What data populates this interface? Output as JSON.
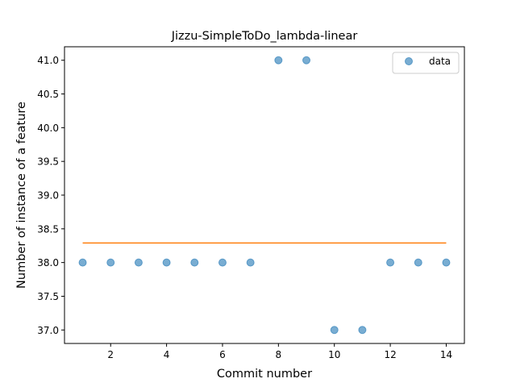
{
  "chart_data": {
    "type": "scatter",
    "title": "Jizzu-SimpleToDo_lambda-linear",
    "xlabel": "Commit number",
    "ylabel": "Number of instance of a feature",
    "xlim": [
      0.35,
      14.65
    ],
    "ylim": [
      36.8,
      41.2
    ],
    "x_ticks": [
      2,
      4,
      6,
      8,
      10,
      12,
      14
    ],
    "y_ticks": [
      37.0,
      37.5,
      38.0,
      38.5,
      39.0,
      39.5,
      40.0,
      40.5,
      41.0
    ],
    "x_tick_labels": [
      "2",
      "4",
      "6",
      "8",
      "10",
      "12",
      "14"
    ],
    "y_tick_labels": [
      "37.0",
      "37.5",
      "38.0",
      "38.5",
      "39.0",
      "39.5",
      "40.0",
      "40.5",
      "41.0"
    ],
    "grid": false,
    "legend_position": "top-right",
    "series": [
      {
        "name": "data",
        "kind": "scatter",
        "color": "#1f77b4",
        "x": [
          1,
          2,
          3,
          4,
          5,
          6,
          7,
          8,
          9,
          10,
          11,
          12,
          13,
          14
        ],
        "y": [
          38,
          38,
          38,
          38,
          38,
          38,
          38,
          41,
          41,
          37,
          37,
          38,
          38,
          38
        ]
      },
      {
        "kind": "line",
        "color": "#ff7f0e",
        "x": [
          1,
          14
        ],
        "y": [
          38.29,
          38.29
        ]
      }
    ]
  }
}
